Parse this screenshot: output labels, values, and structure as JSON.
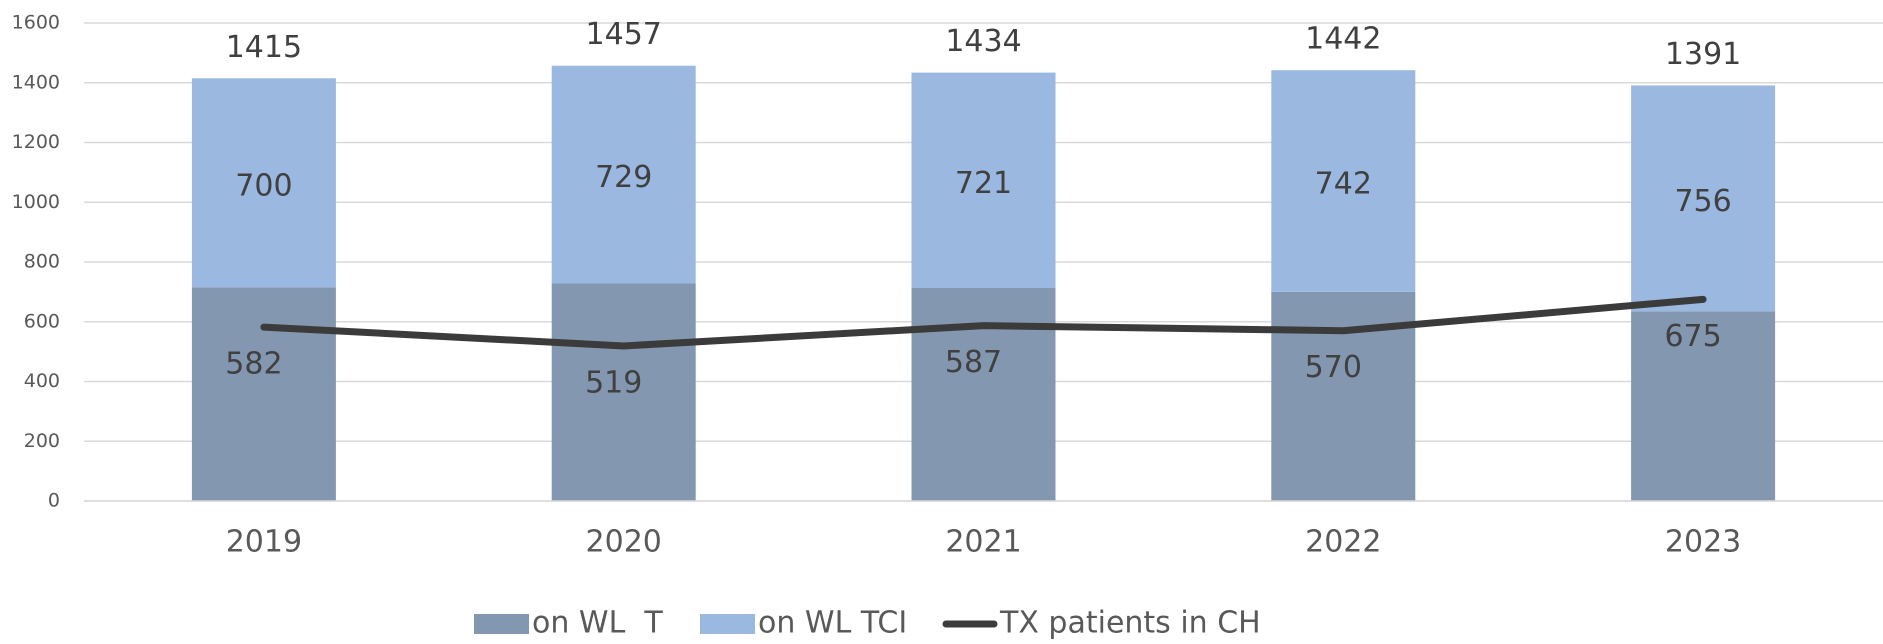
{
  "chart_data": {
    "type": "bar",
    "stacked": true,
    "categories": [
      "2019",
      "2020",
      "2021",
      "2022",
      "2023"
    ],
    "series": [
      {
        "name": "on WL  T",
        "color": "#8497b0",
        "values": [
          715,
          728,
          713,
          700,
          635
        ]
      },
      {
        "name": "on WL TCI",
        "color": "#9ab8e0",
        "values": [
          700,
          729,
          721,
          742,
          756
        ]
      },
      {
        "name": "TX patients in CH",
        "type": "line",
        "color": "#3b3b3b",
        "values": [
          582,
          519,
          587,
          570,
          675
        ]
      }
    ],
    "totals": [
      1415,
      1457,
      1434,
      1442,
      1391
    ],
    "ylim": [
      0,
      1600
    ],
    "yticks": [
      0,
      200,
      400,
      600,
      800,
      1000,
      1200,
      1400,
      1600
    ],
    "grid": true,
    "legend": "bottom"
  }
}
